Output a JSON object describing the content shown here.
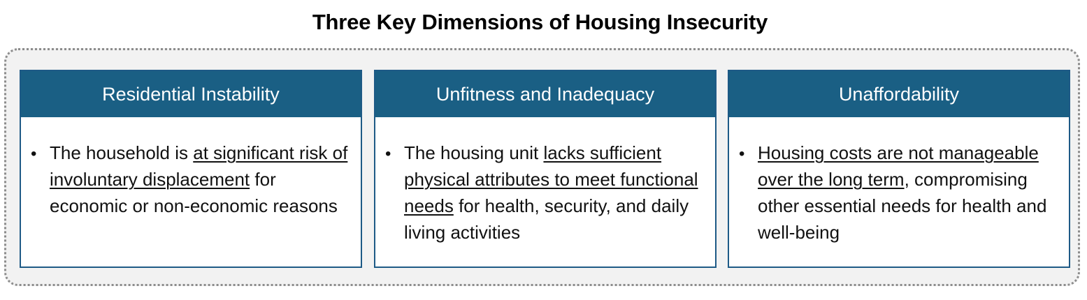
{
  "title": "Three Key Dimensions of Housing Insecurity",
  "cards": [
    {
      "header": "Residential Instability",
      "bullet": "•",
      "text_before": "The household is ",
      "text_underlined": "at significant risk of involuntary displacement",
      "text_after": " for economic or non-economic reasons"
    },
    {
      "header": "Unfitness and Inadequacy",
      "bullet": "•",
      "text_before": "The housing unit ",
      "text_underlined": "lacks sufficient physical attributes to meet functional needs",
      "text_after": " for health, security, and daily living activities"
    },
    {
      "header": "Unaffordability",
      "bullet": "•",
      "text_before": "",
      "text_underlined": "Housing costs are not manageable over the long term",
      "text_after": ", compromising other essential needs for health and well-being"
    }
  ],
  "colors": {
    "header_fill": "#1a5f84",
    "card_border": "#1e5a86",
    "frame_fill": "#f2f2f2",
    "frame_border": "#8c8c8c"
  }
}
